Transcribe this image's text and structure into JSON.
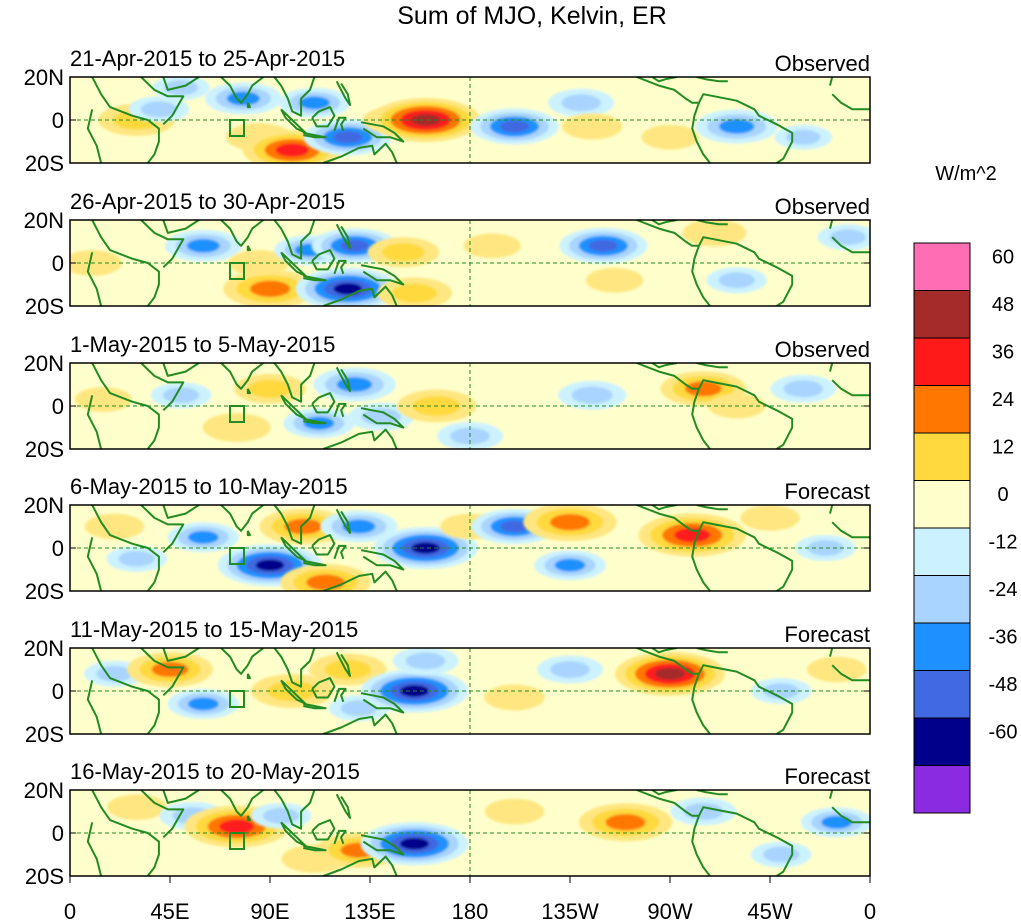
{
  "figure": {
    "title": "Sum of MJO, Kelvin, ER",
    "unit_label": "W/m^2"
  },
  "latitude_labels": [
    "20N",
    "0",
    "20S"
  ],
  "longitude_labels": [
    "0",
    "45E",
    "90E",
    "135E",
    "180",
    "135W",
    "90W",
    "45W",
    "0"
  ],
  "panels": [
    {
      "date_range": "21-Apr-2015 to 25-Apr-2015",
      "status": "Observed",
      "anomalies": [
        {
          "lon": 30,
          "lat": 0,
          "value": 30
        },
        {
          "lon": 40,
          "lat": 5,
          "value": -15
        },
        {
          "lon": 50,
          "lat": 15,
          "value": -12
        },
        {
          "lon": 78,
          "lat": 10,
          "value": -30
        },
        {
          "lon": 85,
          "lat": -8,
          "value": 20
        },
        {
          "lon": 100,
          "lat": -14,
          "value": 50
        },
        {
          "lon": 110,
          "lat": 8,
          "value": -25
        },
        {
          "lon": 125,
          "lat": -8,
          "value": -40
        },
        {
          "lon": 145,
          "lat": 0,
          "value": 14
        },
        {
          "lon": 160,
          "lat": 0,
          "value": 60
        },
        {
          "lon": 200,
          "lat": -3,
          "value": -40
        },
        {
          "lon": 230,
          "lat": 8,
          "value": -20
        },
        {
          "lon": 235,
          "lat": -3,
          "value": 15
        },
        {
          "lon": 270,
          "lat": -8,
          "value": 12
        },
        {
          "lon": 300,
          "lat": -3,
          "value": -35
        },
        {
          "lon": 330,
          "lat": -8,
          "value": -12
        }
      ]
    },
    {
      "date_range": "26-Apr-2015 to 30-Apr-2015",
      "status": "Observed",
      "anomalies": [
        {
          "lon": 10,
          "lat": 0,
          "value": 14
        },
        {
          "lon": 60,
          "lat": 8,
          "value": -30
        },
        {
          "lon": 85,
          "lat": 0,
          "value": 15
        },
        {
          "lon": 90,
          "lat": -12,
          "value": 45
        },
        {
          "lon": 108,
          "lat": 6,
          "value": -25
        },
        {
          "lon": 125,
          "lat": -12,
          "value": -55
        },
        {
          "lon": 128,
          "lat": 8,
          "value": -38
        },
        {
          "lon": 150,
          "lat": 5,
          "value": 25
        },
        {
          "lon": 155,
          "lat": -14,
          "value": 28
        },
        {
          "lon": 190,
          "lat": 8,
          "value": 12
        },
        {
          "lon": 240,
          "lat": 8,
          "value": -40
        },
        {
          "lon": 245,
          "lat": -8,
          "value": 12
        },
        {
          "lon": 290,
          "lat": 14,
          "value": 18
        },
        {
          "lon": 300,
          "lat": -8,
          "value": -15
        },
        {
          "lon": 350,
          "lat": 12,
          "value": -15
        }
      ]
    },
    {
      "date_range": "1-May-2015 to 5-May-2015",
      "status": "Observed",
      "anomalies": [
        {
          "lon": 15,
          "lat": 3,
          "value": 12
        },
        {
          "lon": 50,
          "lat": 5,
          "value": -15
        },
        {
          "lon": 75,
          "lat": -10,
          "value": 22
        },
        {
          "lon": 90,
          "lat": 8,
          "value": 25
        },
        {
          "lon": 112,
          "lat": -8,
          "value": -25
        },
        {
          "lon": 128,
          "lat": 10,
          "value": -35
        },
        {
          "lon": 140,
          "lat": -5,
          "value": -20
        },
        {
          "lon": 165,
          "lat": 0,
          "value": 32
        },
        {
          "lon": 180,
          "lat": -14,
          "value": -20
        },
        {
          "lon": 235,
          "lat": 5,
          "value": -22
        },
        {
          "lon": 285,
          "lat": 8,
          "value": 38
        },
        {
          "lon": 300,
          "lat": 0,
          "value": 12
        },
        {
          "lon": 330,
          "lat": 8,
          "value": -20
        }
      ]
    },
    {
      "date_range": "6-May-2015 to 10-May-2015",
      "status": "Forecast",
      "anomalies": [
        {
          "lon": 20,
          "lat": 10,
          "value": 14
        },
        {
          "lon": 30,
          "lat": -5,
          "value": -15
        },
        {
          "lon": 60,
          "lat": 5,
          "value": -25
        },
        {
          "lon": 90,
          "lat": -8,
          "value": -55
        },
        {
          "lon": 105,
          "lat": 10,
          "value": 40
        },
        {
          "lon": 115,
          "lat": -16,
          "value": 42
        },
        {
          "lon": 130,
          "lat": 10,
          "value": -30
        },
        {
          "lon": 160,
          "lat": 0,
          "value": -55
        },
        {
          "lon": 180,
          "lat": 10,
          "value": 14
        },
        {
          "lon": 200,
          "lat": 10,
          "value": -38
        },
        {
          "lon": 225,
          "lat": 12,
          "value": 45
        },
        {
          "lon": 225,
          "lat": -8,
          "value": -25
        },
        {
          "lon": 280,
          "lat": 6,
          "value": 58
        },
        {
          "lon": 315,
          "lat": 14,
          "value": 14
        },
        {
          "lon": 340,
          "lat": 0,
          "value": -15
        }
      ]
    },
    {
      "date_range": "11-May-2015 to 15-May-2015",
      "status": "Forecast",
      "anomalies": [
        {
          "lon": 20,
          "lat": 8,
          "value": -15
        },
        {
          "lon": 45,
          "lat": 10,
          "value": 38
        },
        {
          "lon": 60,
          "lat": -6,
          "value": -25
        },
        {
          "lon": 100,
          "lat": 0,
          "value": 35
        },
        {
          "lon": 125,
          "lat": 10,
          "value": 30
        },
        {
          "lon": 130,
          "lat": -8,
          "value": -15
        },
        {
          "lon": 155,
          "lat": 0,
          "value": -58
        },
        {
          "lon": 160,
          "lat": 14,
          "value": -20
        },
        {
          "lon": 200,
          "lat": -3,
          "value": 15
        },
        {
          "lon": 225,
          "lat": 10,
          "value": -20
        },
        {
          "lon": 270,
          "lat": 8,
          "value": 60
        },
        {
          "lon": 320,
          "lat": 0,
          "value": -15
        },
        {
          "lon": 345,
          "lat": 10,
          "value": 14
        }
      ]
    },
    {
      "date_range": "16-May-2015 to 20-May-2015",
      "status": "Forecast",
      "anomalies": [
        {
          "lon": 30,
          "lat": 12,
          "value": 14
        },
        {
          "lon": 55,
          "lat": 8,
          "value": -20
        },
        {
          "lon": 75,
          "lat": 3,
          "value": 55
        },
        {
          "lon": 95,
          "lat": 8,
          "value": -15
        },
        {
          "lon": 110,
          "lat": -12,
          "value": 20
        },
        {
          "lon": 130,
          "lat": -8,
          "value": 38
        },
        {
          "lon": 155,
          "lat": -5,
          "value": -58
        },
        {
          "lon": 200,
          "lat": 10,
          "value": 14
        },
        {
          "lon": 250,
          "lat": 5,
          "value": 45
        },
        {
          "lon": 285,
          "lat": 10,
          "value": -20
        },
        {
          "lon": 320,
          "lat": -10,
          "value": -15
        },
        {
          "lon": 345,
          "lat": 5,
          "value": -25
        }
      ]
    }
  ],
  "colorbar": {
    "bins": [
      {
        "color": "#ff6eb4"
      },
      {
        "color": "#a52a2a"
      },
      {
        "color": "#ff1a1a"
      },
      {
        "color": "#ff7700"
      },
      {
        "color": "#ffd93d"
      },
      {
        "color": "#ffffcc"
      },
      {
        "color": "#ccf2ff"
      },
      {
        "color": "#a8d4ff"
      },
      {
        "color": "#1e90ff"
      },
      {
        "color": "#4169e1"
      },
      {
        "color": "#00008b"
      },
      {
        "color": "#8a2be2"
      }
    ],
    "labels": [
      "60",
      "48",
      "36",
      "24",
      "12",
      "0",
      "-12",
      "-24",
      "-36",
      "-48",
      "-60"
    ]
  },
  "style": {
    "coast_color": "#228b22",
    "ref_line_color": "#228b22",
    "background": "#ffffcc"
  }
}
